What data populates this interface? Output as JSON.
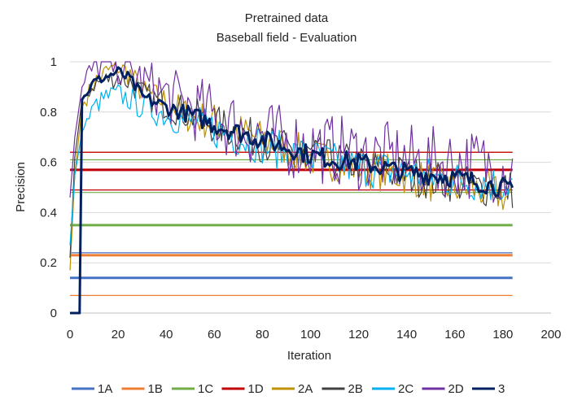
{
  "chart_data": {
    "type": "line",
    "title": "Pretrained data",
    "subtitle": "Baseball field - Evaluation",
    "xlabel": "Iteration",
    "ylabel": "Precision",
    "xlim": [
      0,
      200
    ],
    "ylim": [
      0,
      1
    ],
    "xticks": [
      "0",
      "20",
      "40",
      "60",
      "80",
      "100",
      "120",
      "140",
      "160",
      "180",
      "200"
    ],
    "yticks": [
      "0",
      "0.2",
      "0.4",
      "0.6",
      "0.8",
      "1"
    ],
    "grid": true,
    "legend": "bottom",
    "baselines": [
      {
        "series": "1A",
        "value": 0.14
      },
      {
        "series": "1A",
        "value": 0.24
      },
      {
        "series": "1B",
        "value": 0.07
      },
      {
        "series": "1B",
        "value": 0.23
      },
      {
        "series": "1B",
        "value": 0.64
      },
      {
        "series": "1C",
        "value": 0.35
      },
      {
        "series": "1C",
        "value": 0.48
      },
      {
        "series": "1C",
        "value": 0.61
      },
      {
        "series": "1D",
        "value": 0.57
      },
      {
        "series": "1D",
        "value": 0.49
      },
      {
        "series": "1D",
        "value": 0.64
      }
    ],
    "series": [
      {
        "name": "1A",
        "color": "#4472C4",
        "baseline": 0.14
      },
      {
        "name": "1B",
        "color": "#ED7D31",
        "baseline": 0.23
      },
      {
        "name": "1C",
        "color": "#70AD47",
        "baseline": 0.35
      },
      {
        "name": "1D",
        "color": "#C00000",
        "baseline": 0.57
      },
      {
        "name": "2A",
        "color": "#BF9000",
        "x": [
          0,
          2,
          5,
          10,
          15,
          20,
          25,
          30,
          40,
          50,
          60,
          70,
          80,
          90,
          100,
          110,
          120,
          130,
          140,
          150,
          160,
          170,
          180,
          184
        ],
        "y": [
          0.17,
          0.55,
          0.82,
          0.92,
          0.96,
          0.98,
          0.95,
          0.88,
          0.84,
          0.78,
          0.76,
          0.72,
          0.69,
          0.66,
          0.62,
          0.6,
          0.58,
          0.56,
          0.55,
          0.52,
          0.5,
          0.49,
          0.47,
          0.44
        ]
      },
      {
        "name": "2B",
        "color": "#404040",
        "x": [
          0,
          2,
          5,
          10,
          15,
          20,
          25,
          30,
          40,
          50,
          60,
          70,
          80,
          90,
          100,
          110,
          120,
          130,
          140,
          150,
          160,
          170,
          180,
          184
        ],
        "y": [
          0.22,
          0.62,
          0.85,
          0.91,
          0.93,
          0.94,
          0.92,
          0.87,
          0.83,
          0.79,
          0.75,
          0.72,
          0.68,
          0.65,
          0.63,
          0.61,
          0.59,
          0.57,
          0.55,
          0.53,
          0.52,
          0.5,
          0.5,
          0.49
        ]
      },
      {
        "name": "2C",
        "color": "#00B0F0",
        "x": [
          0,
          2,
          5,
          10,
          15,
          20,
          25,
          30,
          40,
          50,
          60,
          70,
          80,
          90,
          100,
          110,
          120,
          130,
          140,
          150,
          160,
          170,
          180,
          184
        ],
        "y": [
          0.27,
          0.55,
          0.72,
          0.82,
          0.86,
          0.87,
          0.85,
          0.82,
          0.79,
          0.76,
          0.73,
          0.7,
          0.67,
          0.64,
          0.62,
          0.6,
          0.58,
          0.57,
          0.56,
          0.54,
          0.53,
          0.52,
          0.51,
          0.52
        ]
      },
      {
        "name": "2D",
        "color": "#7030A0",
        "x": [
          0,
          2,
          5,
          10,
          15,
          20,
          25,
          30,
          40,
          50,
          60,
          70,
          80,
          90,
          100,
          110,
          120,
          130,
          140,
          150,
          160,
          170,
          180,
          184
        ],
        "y": [
          0.46,
          0.7,
          0.9,
          0.98,
          1.0,
          0.99,
          0.96,
          0.92,
          0.87,
          0.82,
          0.78,
          0.74,
          0.71,
          0.68,
          0.66,
          0.65,
          0.63,
          0.62,
          0.61,
          0.6,
          0.6,
          0.59,
          0.58,
          0.57
        ]
      },
      {
        "name": "3",
        "color": "#002060",
        "x": [
          0,
          2,
          3,
          4,
          5,
          10,
          15,
          20,
          25,
          30,
          40,
          50,
          60,
          70,
          80,
          90,
          100,
          110,
          120,
          130,
          140,
          150,
          160,
          170,
          180,
          184
        ],
        "y": [
          0.0,
          0.0,
          0.0,
          0.0,
          0.85,
          0.92,
          0.94,
          0.96,
          0.93,
          0.86,
          0.82,
          0.79,
          0.75,
          0.72,
          0.69,
          0.66,
          0.63,
          0.61,
          0.6,
          0.58,
          0.56,
          0.55,
          0.54,
          0.52,
          0.5,
          0.48
        ]
      }
    ]
  }
}
